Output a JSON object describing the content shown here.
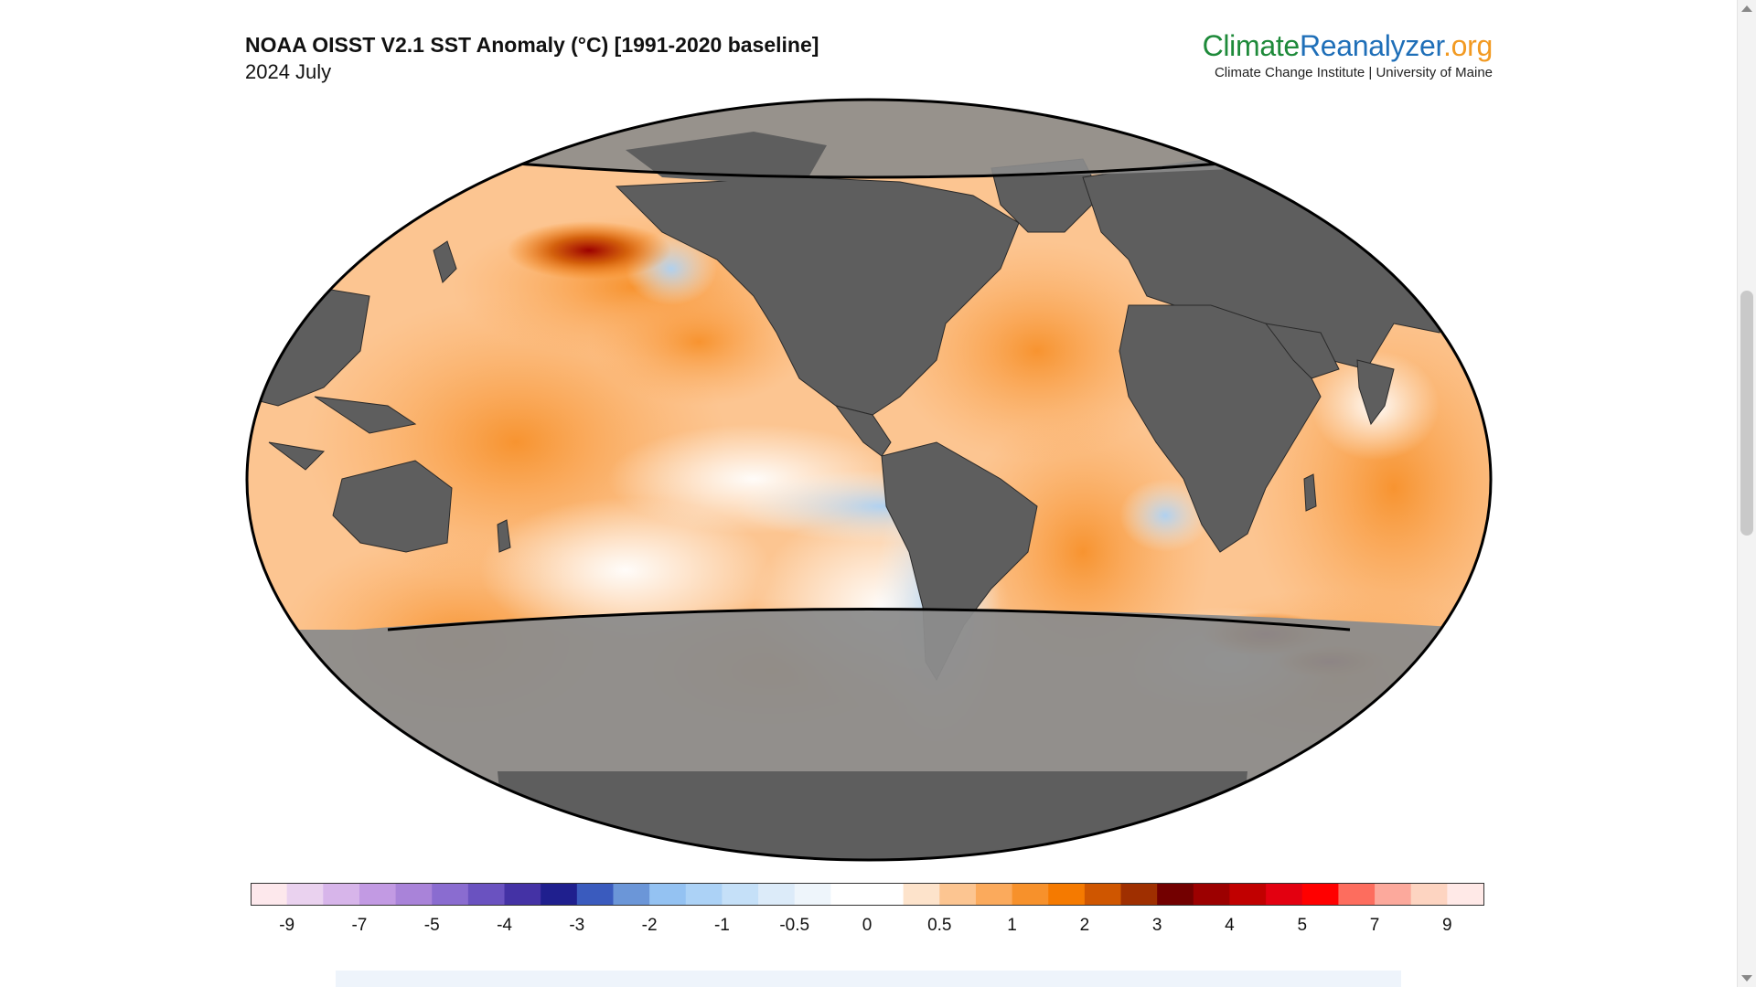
{
  "header": {
    "title": "NOAA OISST V2.1 SST Anomaly (°C) [1991-2020 baseline]",
    "subtitle": "2024 July"
  },
  "brand": {
    "part1": "Climate",
    "part2": "Reanalyzer",
    "part3": ".org",
    "subtitle": "Climate Change Institute | University of Maine",
    "colors": {
      "part1": "#1e8a3a",
      "part2": "#1f6fb8",
      "part3": "#f29a22"
    }
  },
  "map": {
    "projection": "robinson",
    "polar_mask": "gray above ~60°N and below ~60°S",
    "colors": {
      "land": "#5e5e5e",
      "polar_mask": "#8c8c8c",
      "outline": "#000000"
    }
  },
  "legend": {
    "colors": [
      "#fde8ec",
      "#ead2ef",
      "#d7b5ea",
      "#c29ae3",
      "#a983d9",
      "#8a6cd0",
      "#6a52c0",
      "#4432a5",
      "#1f1f8e",
      "#3a5bbe",
      "#6b96d8",
      "#94c2f2",
      "#acd2f6",
      "#c5e0f8",
      "#dcebf9",
      "#eef5fb",
      "#ffffff",
      "#ffffff",
      "#fde3cb",
      "#fcc591",
      "#fbaa5c",
      "#f7912b",
      "#f57a00",
      "#cf5600",
      "#9f2f00",
      "#730000",
      "#9c0000",
      "#c10000",
      "#e30010",
      "#ff0000",
      "#fd6d5e",
      "#fca99c",
      "#fdd4c1",
      "#ffe9e7"
    ],
    "tick_labels": [
      "-9",
      "-7",
      "-5",
      "-4",
      "-3",
      "-2",
      "-1",
      "-0.5",
      "0",
      "0.5",
      "1",
      "2",
      "3",
      "4",
      "5",
      "7",
      "9"
    ]
  }
}
